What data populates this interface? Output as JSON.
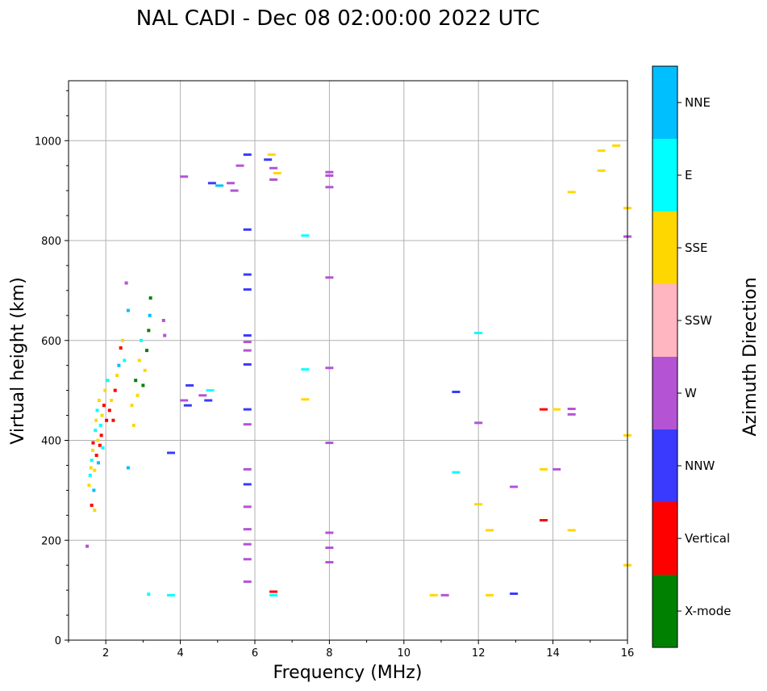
{
  "chart_data": {
    "type": "scatter",
    "title": "NAL CADI - Dec 08 02:00:00 2022 UTC",
    "xlabel": "Frequency (MHz)",
    "ylabel": "Virtual height (km)",
    "xlim": [
      1,
      16
    ],
    "ylim": [
      0,
      1120
    ],
    "xticks": [
      2,
      4,
      6,
      8,
      10,
      12,
      14,
      16
    ],
    "yticks": [
      0,
      200,
      400,
      600,
      800,
      1000
    ],
    "grid": true,
    "colorbar": {
      "title": "Azimuth Direction",
      "categories": [
        {
          "name": "X-mode",
          "color": "#008000"
        },
        {
          "name": "Vertical",
          "color": "#ff0000"
        },
        {
          "name": "NNW",
          "color": "#3a3aff"
        },
        {
          "name": "W",
          "color": "#b454d4"
        },
        {
          "name": "SSW",
          "color": "#ffb6c1"
        },
        {
          "name": "SSE",
          "color": "#ffd700"
        },
        {
          "name": "E",
          "color": "#00ffff"
        },
        {
          "name": "NNE",
          "color": "#00bfff"
        }
      ]
    },
    "points": [
      {
        "f": 1.55,
        "h": 310,
        "c": "SSE"
      },
      {
        "f": 1.58,
        "h": 330,
        "c": "E"
      },
      {
        "f": 1.6,
        "h": 345,
        "c": "SSE"
      },
      {
        "f": 1.62,
        "h": 360,
        "c": "E"
      },
      {
        "f": 1.65,
        "h": 380,
        "c": "SSE"
      },
      {
        "f": 1.66,
        "h": 395,
        "c": "Vertical"
      },
      {
        "f": 1.68,
        "h": 300,
        "c": "NNE"
      },
      {
        "f": 1.7,
        "h": 340,
        "c": "SSE"
      },
      {
        "f": 1.72,
        "h": 420,
        "c": "E"
      },
      {
        "f": 1.74,
        "h": 440,
        "c": "SSE"
      },
      {
        "f": 1.75,
        "h": 370,
        "c": "Vertical"
      },
      {
        "f": 1.77,
        "h": 460,
        "c": "E"
      },
      {
        "f": 1.79,
        "h": 400,
        "c": "SSE"
      },
      {
        "f": 1.8,
        "h": 355,
        "c": "NNE"
      },
      {
        "f": 1.82,
        "h": 480,
        "c": "SSE"
      },
      {
        "f": 1.84,
        "h": 390,
        "c": "Vertical"
      },
      {
        "f": 1.86,
        "h": 430,
        "c": "E"
      },
      {
        "f": 1.88,
        "h": 410,
        "c": "Vertical"
      },
      {
        "f": 1.9,
        "h": 450,
        "c": "SSE"
      },
      {
        "f": 1.92,
        "h": 385,
        "c": "E"
      },
      {
        "f": 1.95,
        "h": 470,
        "c": "Vertical"
      },
      {
        "f": 1.98,
        "h": 500,
        "c": "SSE"
      },
      {
        "f": 2.02,
        "h": 440,
        "c": "Vertical"
      },
      {
        "f": 2.05,
        "h": 520,
        "c": "E"
      },
      {
        "f": 2.1,
        "h": 460,
        "c": "Vertical"
      },
      {
        "f": 2.15,
        "h": 480,
        "c": "SSE"
      },
      {
        "f": 2.2,
        "h": 440,
        "c": "Vertical"
      },
      {
        "f": 2.25,
        "h": 500,
        "c": "Vertical"
      },
      {
        "f": 2.3,
        "h": 530,
        "c": "SSE"
      },
      {
        "f": 2.35,
        "h": 550,
        "c": "NNE"
      },
      {
        "f": 2.4,
        "h": 585,
        "c": "Vertical"
      },
      {
        "f": 2.45,
        "h": 600,
        "c": "SSE"
      },
      {
        "f": 2.5,
        "h": 560,
        "c": "E"
      },
      {
        "f": 2.55,
        "h": 715,
        "c": "W"
      },
      {
        "f": 2.6,
        "h": 660,
        "c": "NNE"
      },
      {
        "f": 2.6,
        "h": 345,
        "c": "NNE"
      },
      {
        "f": 2.7,
        "h": 470,
        "c": "SSE"
      },
      {
        "f": 2.75,
        "h": 430,
        "c": "SSE"
      },
      {
        "f": 2.8,
        "h": 520,
        "c": "X-mode"
      },
      {
        "f": 2.85,
        "h": 490,
        "c": "SSE"
      },
      {
        "f": 2.9,
        "h": 560,
        "c": "SSE"
      },
      {
        "f": 2.95,
        "h": 600,
        "c": "E"
      },
      {
        "f": 3.0,
        "h": 510,
        "c": "X-mode"
      },
      {
        "f": 3.05,
        "h": 540,
        "c": "SSE"
      },
      {
        "f": 3.1,
        "h": 580,
        "c": "X-mode"
      },
      {
        "f": 3.15,
        "h": 620,
        "c": "X-mode"
      },
      {
        "f": 3.18,
        "h": 650,
        "c": "NNE"
      },
      {
        "f": 3.2,
        "h": 685,
        "c": "X-mode"
      },
      {
        "f": 3.15,
        "h": 92,
        "c": "E"
      },
      {
        "f": 3.55,
        "h": 640,
        "c": "W"
      },
      {
        "f": 3.58,
        "h": 610,
        "c": "W"
      },
      {
        "f": 3.75,
        "h": 375,
        "c": "NNW"
      },
      {
        "f": 3.75,
        "h": 90,
        "c": "E"
      },
      {
        "f": 4.1,
        "h": 928,
        "c": "W"
      },
      {
        "f": 4.1,
        "h": 480,
        "c": "W"
      },
      {
        "f": 4.2,
        "h": 470,
        "c": "NNW"
      },
      {
        "f": 4.25,
        "h": 510,
        "c": "NNW"
      },
      {
        "f": 4.6,
        "h": 490,
        "c": "W"
      },
      {
        "f": 4.75,
        "h": 480,
        "c": "NNW"
      },
      {
        "f": 4.8,
        "h": 500,
        "c": "E"
      },
      {
        "f": 4.85,
        "h": 915,
        "c": "NNW"
      },
      {
        "f": 5.05,
        "h": 910,
        "c": "NNE"
      },
      {
        "f": 5.35,
        "h": 915,
        "c": "W"
      },
      {
        "f": 5.45,
        "h": 900,
        "c": "W"
      },
      {
        "f": 5.6,
        "h": 950,
        "c": "W"
      },
      {
        "f": 5.8,
        "h": 972,
        "c": "NNW"
      },
      {
        "f": 5.8,
        "h": 822,
        "c": "NNW"
      },
      {
        "f": 5.8,
        "h": 732,
        "c": "NNW"
      },
      {
        "f": 5.8,
        "h": 702,
        "c": "NNW"
      },
      {
        "f": 5.8,
        "h": 610,
        "c": "NNW"
      },
      {
        "f": 5.8,
        "h": 597,
        "c": "W"
      },
      {
        "f": 5.8,
        "h": 580,
        "c": "W"
      },
      {
        "f": 5.8,
        "h": 552,
        "c": "NNW"
      },
      {
        "f": 5.8,
        "h": 462,
        "c": "NNW"
      },
      {
        "f": 5.8,
        "h": 432,
        "c": "W"
      },
      {
        "f": 5.8,
        "h": 342,
        "c": "W"
      },
      {
        "f": 5.8,
        "h": 312,
        "c": "NNW"
      },
      {
        "f": 5.8,
        "h": 267,
        "c": "W"
      },
      {
        "f": 5.8,
        "h": 222,
        "c": "W"
      },
      {
        "f": 5.8,
        "h": 192,
        "c": "W"
      },
      {
        "f": 5.8,
        "h": 162,
        "c": "W"
      },
      {
        "f": 5.8,
        "h": 117,
        "c": "W"
      },
      {
        "f": 6.35,
        "h": 962,
        "c": "NNW"
      },
      {
        "f": 6.45,
        "h": 972,
        "c": "SSE"
      },
      {
        "f": 6.5,
        "h": 945,
        "c": "W"
      },
      {
        "f": 6.5,
        "h": 922,
        "c": "W"
      },
      {
        "f": 6.6,
        "h": 935,
        "c": "SSE"
      },
      {
        "f": 6.5,
        "h": 97,
        "c": "Vertical"
      },
      {
        "f": 6.5,
        "h": 90,
        "c": "E"
      },
      {
        "f": 7.35,
        "h": 810,
        "c": "E"
      },
      {
        "f": 7.35,
        "h": 542,
        "c": "E"
      },
      {
        "f": 7.35,
        "h": 482,
        "c": "SSE"
      },
      {
        "f": 8.0,
        "h": 937,
        "c": "W"
      },
      {
        "f": 8.0,
        "h": 930,
        "c": "W"
      },
      {
        "f": 8.0,
        "h": 907,
        "c": "W"
      },
      {
        "f": 8.0,
        "h": 726,
        "c": "W"
      },
      {
        "f": 8.0,
        "h": 545,
        "c": "W"
      },
      {
        "f": 8.0,
        "h": 395,
        "c": "W"
      },
      {
        "f": 8.0,
        "h": 215,
        "c": "W"
      },
      {
        "f": 8.0,
        "h": 185,
        "c": "W"
      },
      {
        "f": 8.0,
        "h": 156,
        "c": "W"
      },
      {
        "f": 10.8,
        "h": 90,
        "c": "SSE"
      },
      {
        "f": 11.1,
        "h": 90,
        "c": "W"
      },
      {
        "f": 11.4,
        "h": 497,
        "c": "NNW"
      },
      {
        "f": 11.4,
        "h": 336,
        "c": "E"
      },
      {
        "f": 12.0,
        "h": 615,
        "c": "E"
      },
      {
        "f": 12.0,
        "h": 435,
        "c": "W"
      },
      {
        "f": 12.0,
        "h": 272,
        "c": "SSE"
      },
      {
        "f": 12.3,
        "h": 220,
        "c": "SSE"
      },
      {
        "f": 12.3,
        "h": 90,
        "c": "SSE"
      },
      {
        "f": 12.95,
        "h": 307,
        "c": "W"
      },
      {
        "f": 12.95,
        "h": 93,
        "c": "NNW"
      },
      {
        "f": 13.75,
        "h": 462,
        "c": "Vertical"
      },
      {
        "f": 13.75,
        "h": 342,
        "c": "SSE"
      },
      {
        "f": 13.75,
        "h": 240,
        "c": "Vertical"
      },
      {
        "f": 14.1,
        "h": 462,
        "c": "SSE"
      },
      {
        "f": 14.1,
        "h": 342,
        "c": "W"
      },
      {
        "f": 14.5,
        "h": 463,
        "c": "W"
      },
      {
        "f": 14.5,
        "h": 452,
        "c": "W"
      },
      {
        "f": 14.5,
        "h": 897,
        "c": "SSE"
      },
      {
        "f": 14.5,
        "h": 220,
        "c": "SSE"
      },
      {
        "f": 15.3,
        "h": 980,
        "c": "SSE"
      },
      {
        "f": 15.3,
        "h": 940,
        "c": "SSE"
      },
      {
        "f": 15.7,
        "h": 990,
        "c": "SSE"
      },
      {
        "f": 16.0,
        "h": 865,
        "c": "SSE"
      },
      {
        "f": 16.0,
        "h": 808,
        "c": "W"
      },
      {
        "f": 16.0,
        "h": 410,
        "c": "SSE"
      },
      {
        "f": 16.0,
        "h": 150,
        "c": "SSE"
      },
      {
        "f": 1.5,
        "h": 188,
        "c": "W"
      },
      {
        "f": 1.7,
        "h": 260,
        "c": "SSE"
      },
      {
        "f": 1.62,
        "h": 270,
        "c": "Vertical"
      }
    ]
  }
}
